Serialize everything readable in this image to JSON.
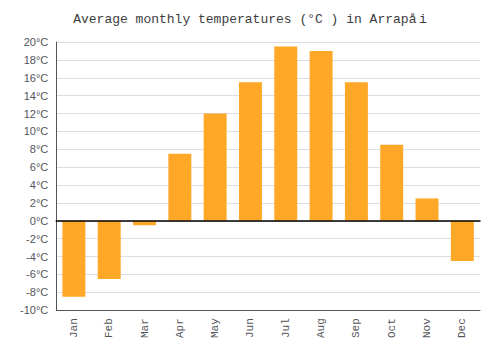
{
  "chart_data": {
    "type": "bar",
    "title": "Average monthly temperatures (°C ) in Arrapå i",
    "categories": [
      "Jan",
      "Feb",
      "Mar",
      "Apr",
      "May",
      "Jun",
      "Jul",
      "Aug",
      "Sep",
      "Oct",
      "Nov",
      "Dec"
    ],
    "values": [
      -8.5,
      -6.5,
      -0.5,
      7.5,
      12.0,
      15.5,
      19.5,
      19.0,
      15.5,
      8.5,
      2.5,
      -4.5
    ],
    "color": "#FFA726",
    "ylim": [
      -10,
      20
    ],
    "yticks": [
      {
        "value": -10,
        "label": "-10°C"
      },
      {
        "value": -8,
        "label": "-8°C"
      },
      {
        "value": -6,
        "label": "-6°C"
      },
      {
        "value": -4,
        "label": "-4°C"
      },
      {
        "value": -2,
        "label": "-2°C"
      },
      {
        "value": 0,
        "label": "0°C"
      },
      {
        "value": 2,
        "label": "2°C"
      },
      {
        "value": 4,
        "label": "4°C"
      },
      {
        "value": 6,
        "label": "6°C"
      },
      {
        "value": 8,
        "label": "8°C"
      },
      {
        "value": 10,
        "label": "10°C"
      },
      {
        "value": 12,
        "label": "12°C"
      },
      {
        "value": 14,
        "label": "14°C"
      },
      {
        "value": 16,
        "label": "16°C"
      },
      {
        "value": 18,
        "label": "18°C"
      },
      {
        "value": 20,
        "label": "20°C"
      }
    ],
    "grid": true
  }
}
